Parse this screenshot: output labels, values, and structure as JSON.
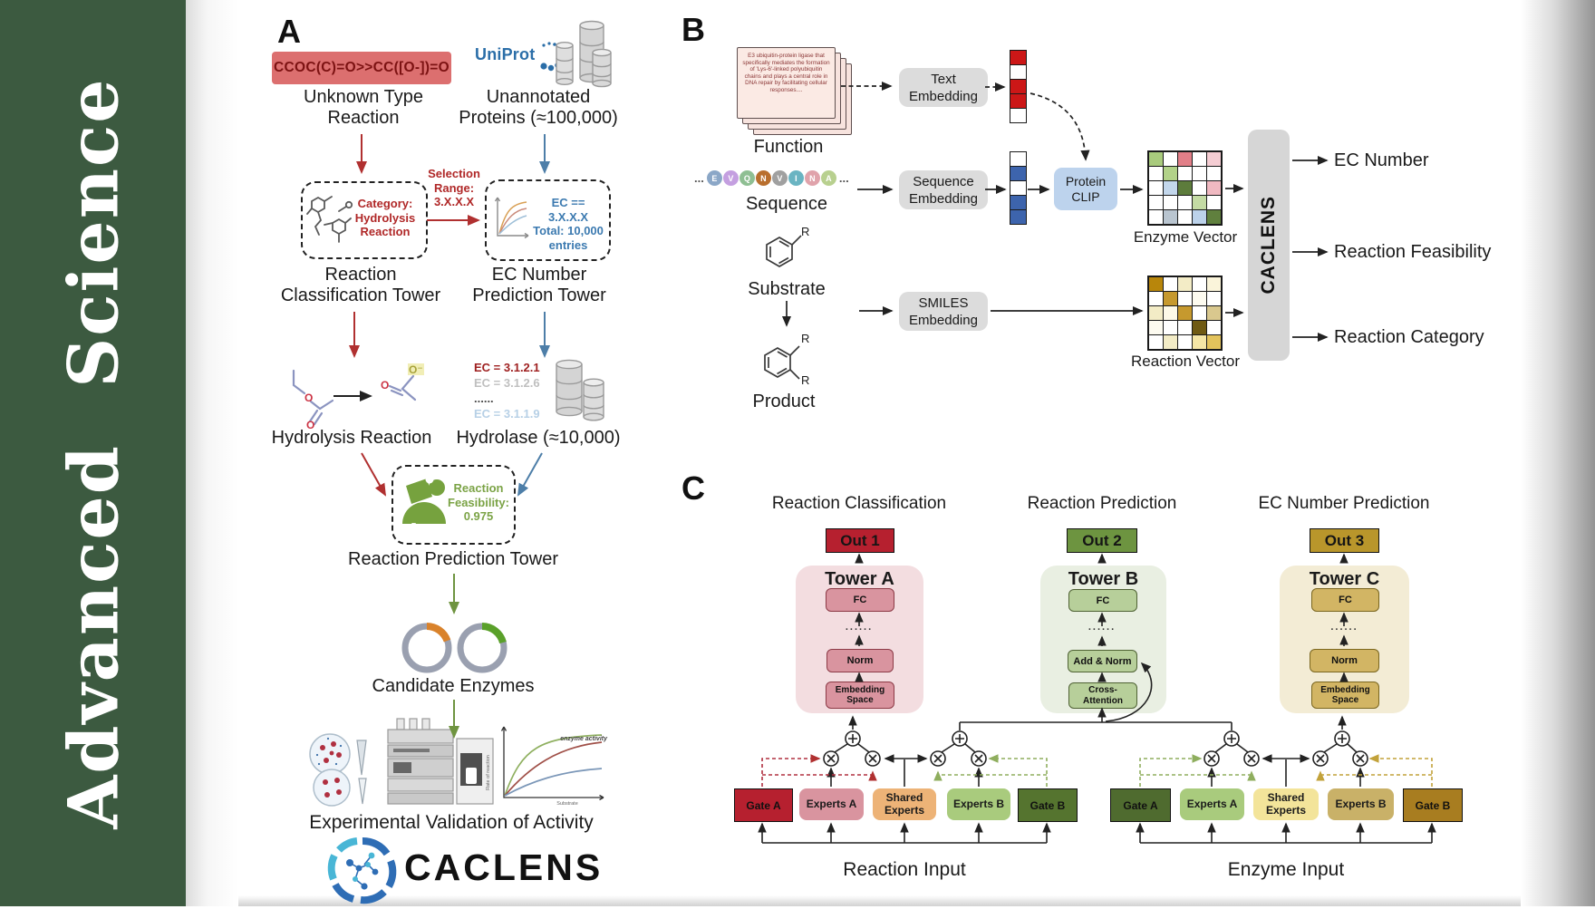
{
  "journal_name": "Advanced Science",
  "panel_a": {
    "label": "A",
    "smiles": "CCOC(C)=O>>CC([O-])=O",
    "unknown_type": "Unknown Type\nReaction",
    "uniprot": "UniProt",
    "unannotated": "Unannotated\nProteins (≈100,000)",
    "selection_range": "Selection\nRange:\n3.X.X.X",
    "category": "Category:\nHydrolysis\nReaction",
    "ec_selection": "EC == 3.X.X.X\nTotal: 10,000\nentries",
    "classification_tower": "Reaction\nClassification Tower",
    "ec_tower": "EC Number\nPrediction Tower",
    "hydrolysis": "Hydrolysis Reaction",
    "hydrolase": "Hydrolase (≈10,000)",
    "ec_list": [
      {
        "text": "EC = 3.1.2.1",
        "color": "#9e1f1f"
      },
      {
        "text": "EC = 3.1.2.6",
        "color": "#bfbfbf"
      },
      {
        "text": "......",
        "color": "#4a4a4a"
      },
      {
        "text": "EC = 3.1.1.9",
        "color": "#b7d0e6"
      }
    ],
    "enzyme_label": "Enzyme",
    "feasibility": "Reaction\nFeasibility:\n0.975",
    "prediction_tower": "Reaction Prediction Tower",
    "candidate_enzymes": "Candidate Enzymes",
    "validation": "Experimental Validation of Activity",
    "brand": "CACLENS",
    "activity_chart": {
      "label": "enzyme activity",
      "ylabel": "Rate of reaction",
      "xlabel": "Substrate"
    }
  },
  "panel_b": {
    "label": "B",
    "function_text": "E3 ubiquitin-protein ligase that specifically mediates the formation of 'Lys-6'-linked polyubiquitin chains and plays a central role in DNA repair by facilitating cellular responses....",
    "function": "Function",
    "sequence": "Sequence",
    "substrate": "Substrate",
    "product": "Product",
    "r": "R",
    "dots": "...",
    "residues": [
      {
        "letter": "E",
        "color": "#8ba7c7"
      },
      {
        "letter": "V",
        "color": "#c49fe0"
      },
      {
        "letter": "Q",
        "color": "#8fbf93"
      },
      {
        "letter": "N",
        "color": "#b96f2e"
      },
      {
        "letter": "V",
        "color": "#a0a0a0"
      },
      {
        "letter": "I",
        "color": "#6ab4c2"
      },
      {
        "letter": "N",
        "color": "#e0a3ab"
      },
      {
        "letter": "A",
        "color": "#b8d08f"
      }
    ],
    "text_embedding": "Text\nEmbedding",
    "sequence_embedding": "Sequence\nEmbedding",
    "smiles_embedding": "SMILES\nEmbedding",
    "protein_clip": "Protein\nCLIP",
    "enzyme_vector": "Enzyme Vector",
    "reaction_vector": "Reaction Vector",
    "caclens": "CACLENS",
    "out_ec": "EC Number",
    "out_feasibility": "Reaction Feasibility",
    "out_category": "Reaction Category",
    "text_vec": [
      "#cc1717",
      "#ffffff",
      "#cc1717",
      "#cc1717",
      "#ffffff"
    ],
    "seq_vec": [
      "#ffffff",
      "#3d64ad",
      "#ffffff",
      "#3d64ad",
      "#3d64ad"
    ],
    "enzyme_grid": [
      "#a9cb7d",
      "#ffffff",
      "#e27f88",
      "#ffffff",
      "#f5cdd3",
      "#ffffff",
      "#b2d289",
      "#ffffff",
      "#ffffff",
      "#ffffff",
      "#ffffff",
      "#c3d7ec",
      "#5d7c3c",
      "#ffffff",
      "#f0b9c1",
      "#ffffff",
      "#ffffff",
      "#ffffff",
      "#c4dba4",
      "#ffffff",
      "#ffffff",
      "#b9c5d0",
      "#ffffff",
      "#bcd2ea",
      "#60803e"
    ],
    "reaction_grid": [
      "#b8860b",
      "#ffffff",
      "#f3ecc6",
      "#ffffff",
      "#faf4da",
      "#ffffff",
      "#c6992e",
      "#ffffff",
      "#fdfbf0",
      "#ffffff",
      "#f3ecc6",
      "#fdf9e8",
      "#c6992e",
      "#ffffff",
      "#d9c88e",
      "#fdfbf0",
      "#ffffff",
      "#ffffff",
      "#6f5a13",
      "#ffffff",
      "#ffffff",
      "#f3ecc6",
      "#ffffff",
      "#f4e6a6",
      "#e3c35c"
    ]
  },
  "panel_c": {
    "label": "C",
    "col_a": {
      "title": "Reaction Classification",
      "out": "Out 1",
      "tower": "Tower A",
      "fc": "FC",
      "dots": "......",
      "l3": "Norm",
      "l4": "Embedding\nSpace"
    },
    "col_b": {
      "title": "Reaction Prediction",
      "out": "Out 2",
      "tower": "Tower B",
      "fc": "FC",
      "dots": "......",
      "l3": "Add & Norm",
      "l4": "Cross-\nAttention"
    },
    "col_c": {
      "title": "EC Number Prediction",
      "out": "Out 3",
      "tower": "Tower C",
      "fc": "FC",
      "dots": "......",
      "l3": "Norm",
      "l4": "Embedding\nSpace"
    },
    "moe_reaction": {
      "gate_a": "Gate A",
      "experts_a": "Experts A",
      "shared": "Shared\nExperts",
      "experts_b": "Experts B",
      "gate_b": "Gate B",
      "input": "Reaction Input"
    },
    "moe_enzyme": {
      "gate_a": "Gate A",
      "experts_a": "Experts A",
      "shared": "Shared\nExperts",
      "experts_b": "Experts B",
      "gate_b": "Gate B",
      "input": "Enzyme Input"
    }
  }
}
